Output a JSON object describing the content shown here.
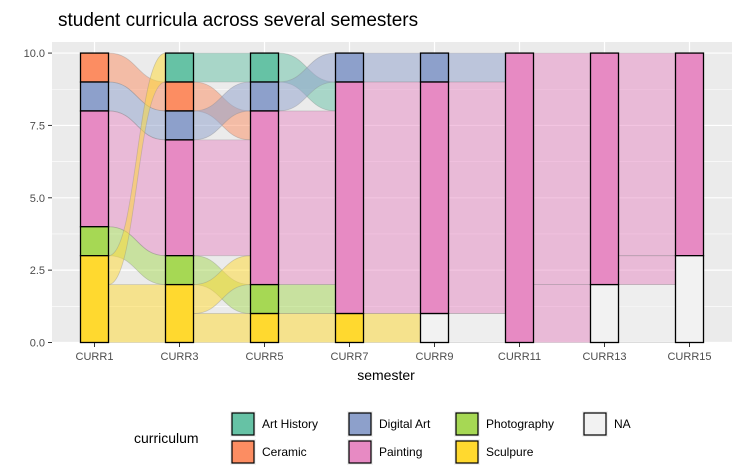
{
  "chart_data": {
    "type": "alluvial",
    "title": "student curricula across several semesters",
    "xlabel": "semester",
    "ylabel": "",
    "ylim": [
      0,
      10.4
    ],
    "yticks": [
      0,
      2.5,
      5,
      7.5,
      10
    ],
    "ytick_labels": [
      "0.0",
      "2.5",
      "5.0",
      "7.5",
      "10.0"
    ],
    "categories": [
      "CURR1",
      "CURR3",
      "CURR5",
      "CURR7",
      "CURR9",
      "CURR11",
      "CURR13",
      "CURR15"
    ],
    "stack_order_top_to_bottom": [
      "Art History",
      "Ceramic",
      "Digital Art",
      "Painting",
      "Photography",
      "Sculpure",
      "NA"
    ],
    "series": [
      {
        "name": "Art History",
        "color": "#66c2a5",
        "values": [
          0,
          1,
          1,
          0,
          0,
          0,
          0,
          0
        ]
      },
      {
        "name": "Ceramic",
        "color": "#fc8d62",
        "values": [
          1,
          1,
          0,
          0,
          0,
          0,
          0,
          0
        ]
      },
      {
        "name": "Digital Art",
        "color": "#8da0cb",
        "values": [
          1,
          1,
          1,
          1,
          1,
          0,
          0,
          0
        ]
      },
      {
        "name": "Painting",
        "color": "#e78ac3",
        "values": [
          4,
          4,
          6,
          8,
          8,
          10,
          8,
          7
        ]
      },
      {
        "name": "Photography",
        "color": "#a6d854",
        "values": [
          1,
          1,
          1,
          0,
          0,
          0,
          0,
          0
        ]
      },
      {
        "name": "Sculpure",
        "color": "#ffd92f",
        "values": [
          3,
          2,
          1,
          1,
          0,
          0,
          0,
          0
        ]
      },
      {
        "name": "NA",
        "color": "#f2f2f2",
        "values": [
          0,
          0,
          0,
          0,
          1,
          0,
          2,
          3
        ]
      }
    ],
    "legend": {
      "title": "curriculum",
      "position": "bottom",
      "entries": [
        "Art History",
        "Ceramic",
        "Digital Art",
        "Painting",
        "Photography",
        "Sculpure",
        "NA"
      ]
    }
  }
}
